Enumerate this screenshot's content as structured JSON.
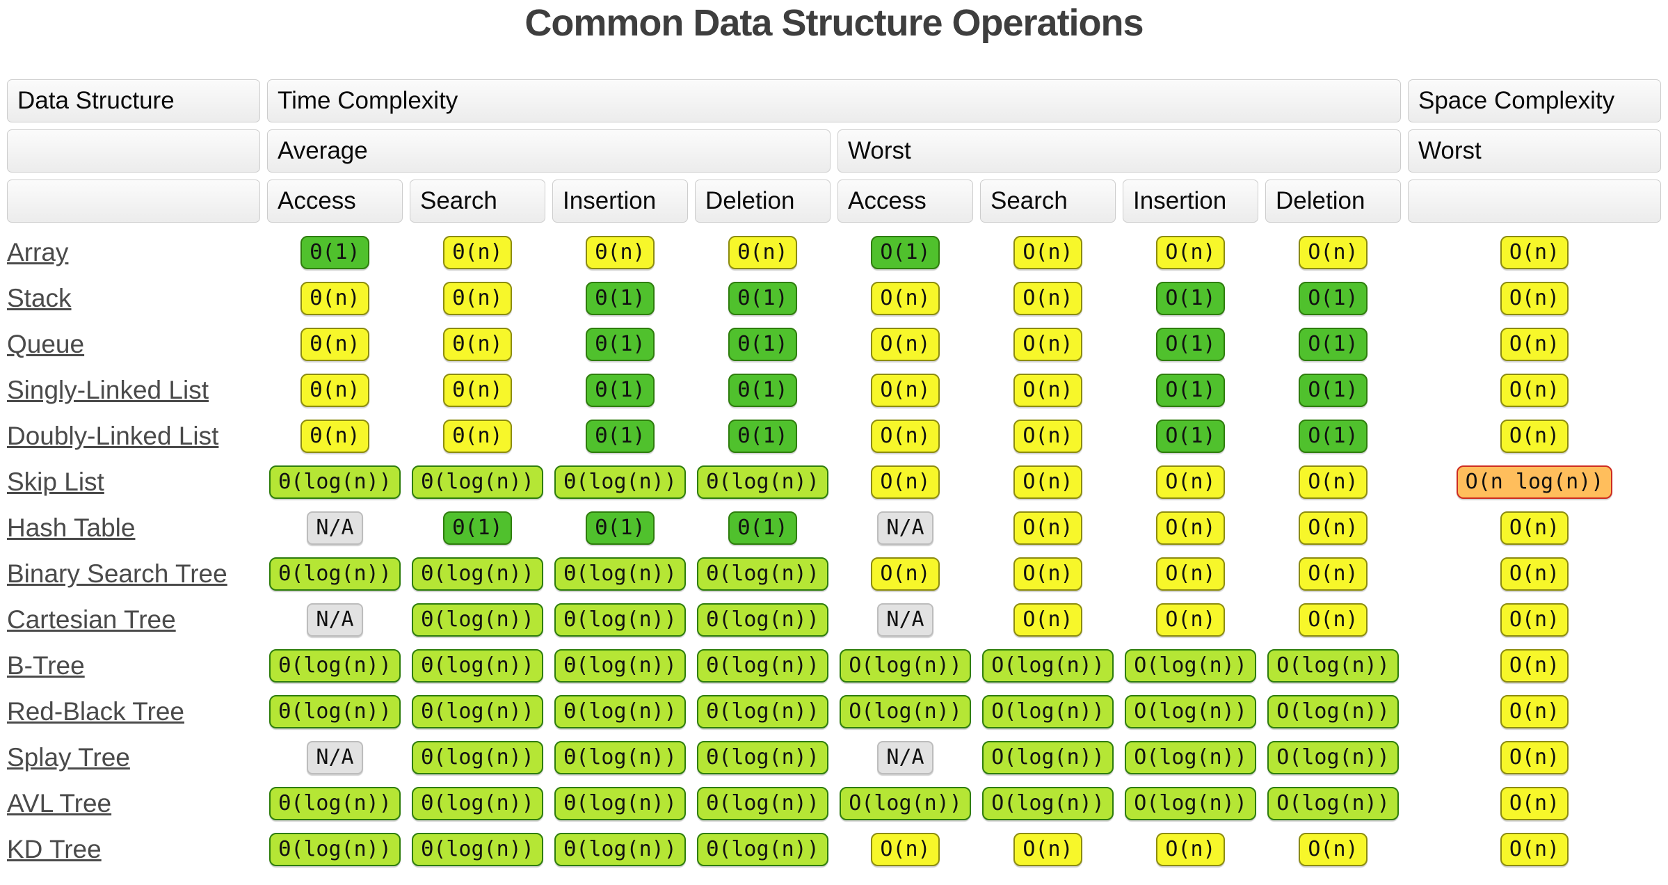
{
  "title": "Common Data Structure Operations",
  "colors": {
    "green": "#50C12D",
    "green_border": "#2E7D0D",
    "yellow": "#F7F72A",
    "yellow_border": "#8C8C10",
    "yellowgreen": "#B5E635",
    "yellowgreen_border": "#2E7D0D",
    "gray": "#E2E2E2",
    "gray_border": "#BDBDBD",
    "orange": "#FFBE5C",
    "orange_border": "#CE2C20"
  },
  "header": {
    "data_structure": "Data Structure",
    "time_complexity": "Time Complexity",
    "space_complexity": "Space Complexity",
    "average": "Average",
    "worst": "Worst",
    "space_worst": "Worst",
    "ops": [
      "Access",
      "Search",
      "Insertion",
      "Deletion",
      "Access",
      "Search",
      "Insertion",
      "Deletion"
    ]
  },
  "rows": [
    {
      "name": "Array",
      "cells": [
        {
          "text": "Θ(1)",
          "variant": "green"
        },
        {
          "text": "Θ(n)",
          "variant": "yellow"
        },
        {
          "text": "Θ(n)",
          "variant": "yellow"
        },
        {
          "text": "Θ(n)",
          "variant": "yellow"
        },
        {
          "text": "O(1)",
          "variant": "green"
        },
        {
          "text": "O(n)",
          "variant": "yellow"
        },
        {
          "text": "O(n)",
          "variant": "yellow"
        },
        {
          "text": "O(n)",
          "variant": "yellow"
        },
        {
          "text": "O(n)",
          "variant": "yellow"
        }
      ]
    },
    {
      "name": "Stack",
      "cells": [
        {
          "text": "Θ(n)",
          "variant": "yellow"
        },
        {
          "text": "Θ(n)",
          "variant": "yellow"
        },
        {
          "text": "Θ(1)",
          "variant": "green"
        },
        {
          "text": "Θ(1)",
          "variant": "green"
        },
        {
          "text": "O(n)",
          "variant": "yellow"
        },
        {
          "text": "O(n)",
          "variant": "yellow"
        },
        {
          "text": "O(1)",
          "variant": "green"
        },
        {
          "text": "O(1)",
          "variant": "green"
        },
        {
          "text": "O(n)",
          "variant": "yellow"
        }
      ]
    },
    {
      "name": "Queue",
      "cells": [
        {
          "text": "Θ(n)",
          "variant": "yellow"
        },
        {
          "text": "Θ(n)",
          "variant": "yellow"
        },
        {
          "text": "Θ(1)",
          "variant": "green"
        },
        {
          "text": "Θ(1)",
          "variant": "green"
        },
        {
          "text": "O(n)",
          "variant": "yellow"
        },
        {
          "text": "O(n)",
          "variant": "yellow"
        },
        {
          "text": "O(1)",
          "variant": "green"
        },
        {
          "text": "O(1)",
          "variant": "green"
        },
        {
          "text": "O(n)",
          "variant": "yellow"
        }
      ]
    },
    {
      "name": "Singly-Linked List",
      "cells": [
        {
          "text": "Θ(n)",
          "variant": "yellow"
        },
        {
          "text": "Θ(n)",
          "variant": "yellow"
        },
        {
          "text": "Θ(1)",
          "variant": "green"
        },
        {
          "text": "Θ(1)",
          "variant": "green"
        },
        {
          "text": "O(n)",
          "variant": "yellow"
        },
        {
          "text": "O(n)",
          "variant": "yellow"
        },
        {
          "text": "O(1)",
          "variant": "green"
        },
        {
          "text": "O(1)",
          "variant": "green"
        },
        {
          "text": "O(n)",
          "variant": "yellow"
        }
      ]
    },
    {
      "name": "Doubly-Linked List",
      "cells": [
        {
          "text": "Θ(n)",
          "variant": "yellow"
        },
        {
          "text": "Θ(n)",
          "variant": "yellow"
        },
        {
          "text": "Θ(1)",
          "variant": "green"
        },
        {
          "text": "Θ(1)",
          "variant": "green"
        },
        {
          "text": "O(n)",
          "variant": "yellow"
        },
        {
          "text": "O(n)",
          "variant": "yellow"
        },
        {
          "text": "O(1)",
          "variant": "green"
        },
        {
          "text": "O(1)",
          "variant": "green"
        },
        {
          "text": "O(n)",
          "variant": "yellow"
        }
      ]
    },
    {
      "name": "Skip List",
      "cells": [
        {
          "text": "Θ(log(n))",
          "variant": "yellowgreen"
        },
        {
          "text": "Θ(log(n))",
          "variant": "yellowgreen"
        },
        {
          "text": "Θ(log(n))",
          "variant": "yellowgreen"
        },
        {
          "text": "Θ(log(n))",
          "variant": "yellowgreen"
        },
        {
          "text": "O(n)",
          "variant": "yellow"
        },
        {
          "text": "O(n)",
          "variant": "yellow"
        },
        {
          "text": "O(n)",
          "variant": "yellow"
        },
        {
          "text": "O(n)",
          "variant": "yellow"
        },
        {
          "text": "O(n log(n))",
          "variant": "orange"
        }
      ]
    },
    {
      "name": "Hash Table",
      "cells": [
        {
          "text": "N/A",
          "variant": "gray"
        },
        {
          "text": "Θ(1)",
          "variant": "green"
        },
        {
          "text": "Θ(1)",
          "variant": "green"
        },
        {
          "text": "Θ(1)",
          "variant": "green"
        },
        {
          "text": "N/A",
          "variant": "gray"
        },
        {
          "text": "O(n)",
          "variant": "yellow"
        },
        {
          "text": "O(n)",
          "variant": "yellow"
        },
        {
          "text": "O(n)",
          "variant": "yellow"
        },
        {
          "text": "O(n)",
          "variant": "yellow"
        }
      ]
    },
    {
      "name": "Binary Search Tree",
      "cells": [
        {
          "text": "Θ(log(n))",
          "variant": "yellowgreen"
        },
        {
          "text": "Θ(log(n))",
          "variant": "yellowgreen"
        },
        {
          "text": "Θ(log(n))",
          "variant": "yellowgreen"
        },
        {
          "text": "Θ(log(n))",
          "variant": "yellowgreen"
        },
        {
          "text": "O(n)",
          "variant": "yellow"
        },
        {
          "text": "O(n)",
          "variant": "yellow"
        },
        {
          "text": "O(n)",
          "variant": "yellow"
        },
        {
          "text": "O(n)",
          "variant": "yellow"
        },
        {
          "text": "O(n)",
          "variant": "yellow"
        }
      ]
    },
    {
      "name": "Cartesian Tree",
      "cells": [
        {
          "text": "N/A",
          "variant": "gray"
        },
        {
          "text": "Θ(log(n))",
          "variant": "yellowgreen"
        },
        {
          "text": "Θ(log(n))",
          "variant": "yellowgreen"
        },
        {
          "text": "Θ(log(n))",
          "variant": "yellowgreen"
        },
        {
          "text": "N/A",
          "variant": "gray"
        },
        {
          "text": "O(n)",
          "variant": "yellow"
        },
        {
          "text": "O(n)",
          "variant": "yellow"
        },
        {
          "text": "O(n)",
          "variant": "yellow"
        },
        {
          "text": "O(n)",
          "variant": "yellow"
        }
      ]
    },
    {
      "name": "B-Tree",
      "cells": [
        {
          "text": "Θ(log(n))",
          "variant": "yellowgreen"
        },
        {
          "text": "Θ(log(n))",
          "variant": "yellowgreen"
        },
        {
          "text": "Θ(log(n))",
          "variant": "yellowgreen"
        },
        {
          "text": "Θ(log(n))",
          "variant": "yellowgreen"
        },
        {
          "text": "O(log(n))",
          "variant": "yellowgreen"
        },
        {
          "text": "O(log(n))",
          "variant": "yellowgreen"
        },
        {
          "text": "O(log(n))",
          "variant": "yellowgreen"
        },
        {
          "text": "O(log(n))",
          "variant": "yellowgreen"
        },
        {
          "text": "O(n)",
          "variant": "yellow"
        }
      ]
    },
    {
      "name": "Red-Black Tree",
      "cells": [
        {
          "text": "Θ(log(n))",
          "variant": "yellowgreen"
        },
        {
          "text": "Θ(log(n))",
          "variant": "yellowgreen"
        },
        {
          "text": "Θ(log(n))",
          "variant": "yellowgreen"
        },
        {
          "text": "Θ(log(n))",
          "variant": "yellowgreen"
        },
        {
          "text": "O(log(n))",
          "variant": "yellowgreen"
        },
        {
          "text": "O(log(n))",
          "variant": "yellowgreen"
        },
        {
          "text": "O(log(n))",
          "variant": "yellowgreen"
        },
        {
          "text": "O(log(n))",
          "variant": "yellowgreen"
        },
        {
          "text": "O(n)",
          "variant": "yellow"
        }
      ]
    },
    {
      "name": "Splay Tree",
      "cells": [
        {
          "text": "N/A",
          "variant": "gray"
        },
        {
          "text": "Θ(log(n))",
          "variant": "yellowgreen"
        },
        {
          "text": "Θ(log(n))",
          "variant": "yellowgreen"
        },
        {
          "text": "Θ(log(n))",
          "variant": "yellowgreen"
        },
        {
          "text": "N/A",
          "variant": "gray"
        },
        {
          "text": "O(log(n))",
          "variant": "yellowgreen"
        },
        {
          "text": "O(log(n))",
          "variant": "yellowgreen"
        },
        {
          "text": "O(log(n))",
          "variant": "yellowgreen"
        },
        {
          "text": "O(n)",
          "variant": "yellow"
        }
      ]
    },
    {
      "name": "AVL Tree",
      "cells": [
        {
          "text": "Θ(log(n))",
          "variant": "yellowgreen"
        },
        {
          "text": "Θ(log(n))",
          "variant": "yellowgreen"
        },
        {
          "text": "Θ(log(n))",
          "variant": "yellowgreen"
        },
        {
          "text": "Θ(log(n))",
          "variant": "yellowgreen"
        },
        {
          "text": "O(log(n))",
          "variant": "yellowgreen"
        },
        {
          "text": "O(log(n))",
          "variant": "yellowgreen"
        },
        {
          "text": "O(log(n))",
          "variant": "yellowgreen"
        },
        {
          "text": "O(log(n))",
          "variant": "yellowgreen"
        },
        {
          "text": "O(n)",
          "variant": "yellow"
        }
      ]
    },
    {
      "name": "KD Tree",
      "cells": [
        {
          "text": "Θ(log(n))",
          "variant": "yellowgreen"
        },
        {
          "text": "Θ(log(n))",
          "variant": "yellowgreen"
        },
        {
          "text": "Θ(log(n))",
          "variant": "yellowgreen"
        },
        {
          "text": "Θ(log(n))",
          "variant": "yellowgreen"
        },
        {
          "text": "O(n)",
          "variant": "yellow"
        },
        {
          "text": "O(n)",
          "variant": "yellow"
        },
        {
          "text": "O(n)",
          "variant": "yellow"
        },
        {
          "text": "O(n)",
          "variant": "yellow"
        },
        {
          "text": "O(n)",
          "variant": "yellow"
        }
      ]
    }
  ]
}
